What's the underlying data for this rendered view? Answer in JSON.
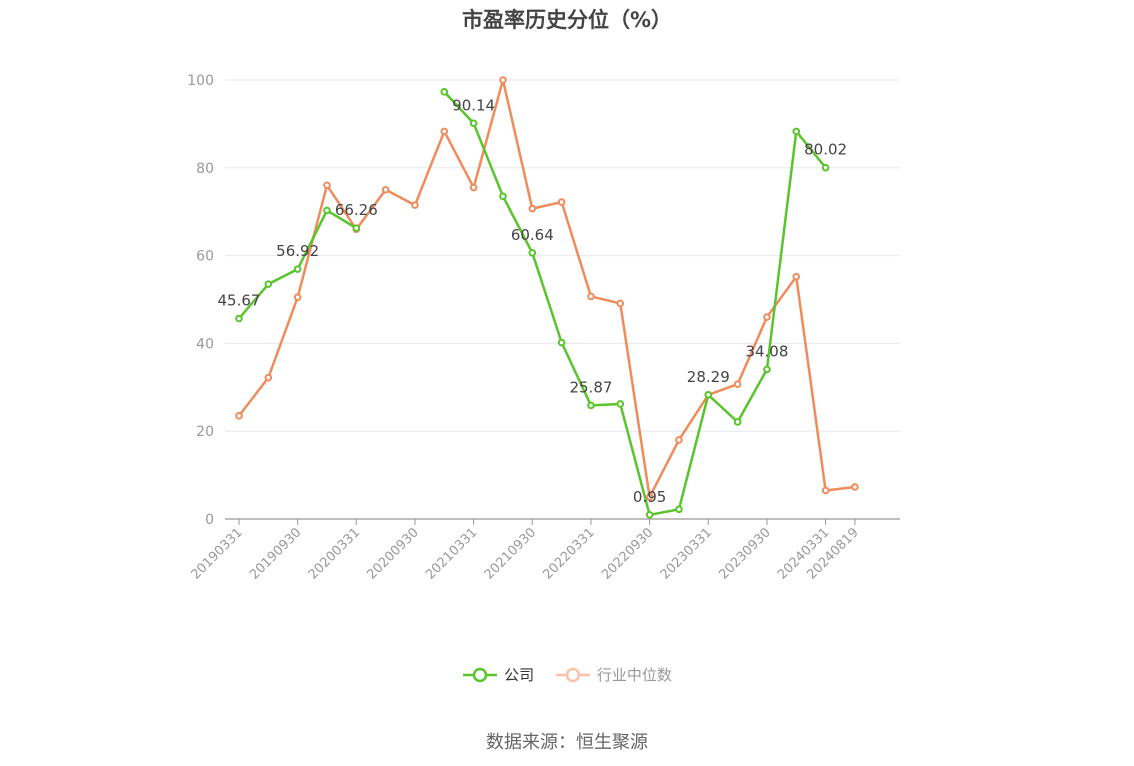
{
  "chart_data": {
    "type": "line",
    "title": "市盈率历史分位（%）",
    "source": "数据来源：恒生聚源",
    "ylim": [
      0,
      100
    ],
    "yticks": [
      0,
      20,
      40,
      60,
      80,
      100
    ],
    "xtick_labels": [
      "20190331",
      "20190930",
      "20200331",
      "20200930",
      "20210331",
      "20210930",
      "20220331",
      "20220930",
      "20230331",
      "20230930",
      "20240331",
      "20240819"
    ],
    "x": [
      "20190331",
      "20190630",
      "20190930",
      "20191231",
      "20200331",
      "20200630",
      "20200930",
      "20201231",
      "20210331",
      "20210630",
      "20210930",
      "20211231",
      "20220331",
      "20220630",
      "20220930",
      "20221231",
      "20230331",
      "20230630",
      "20230930",
      "20231231",
      "20240331",
      "20240819"
    ],
    "grid": true,
    "legend_position": "bottom",
    "series": [
      {
        "name": "公司",
        "color": "#5ac42c",
        "values": [
          45.67,
          53.5,
          56.92,
          70.3,
          66.26,
          null,
          null,
          97.3,
          90.14,
          73.5,
          60.64,
          40.2,
          25.87,
          26.2,
          0.95,
          2.2,
          28.29,
          22.1,
          34.08,
          88.3,
          80.02,
          null
        ],
        "labels": [
          "45.67",
          null,
          "56.92",
          null,
          "66.26",
          null,
          null,
          null,
          "90.14",
          null,
          "60.64",
          null,
          "25.87",
          null,
          "0.95",
          null,
          "28.29",
          null,
          "34.08",
          null,
          "80.02",
          null
        ]
      },
      {
        "name": "行业中位数",
        "color": "#f08c5c",
        "values": [
          23.5,
          32.2,
          50.5,
          76.0,
          66.0,
          75.0,
          71.5,
          88.3,
          75.5,
          100.0,
          70.7,
          72.2,
          50.7,
          49.1,
          5.0,
          18.0,
          28.3,
          30.7,
          46.0,
          55.2,
          6.5,
          7.3
        ],
        "labels": []
      }
    ]
  }
}
